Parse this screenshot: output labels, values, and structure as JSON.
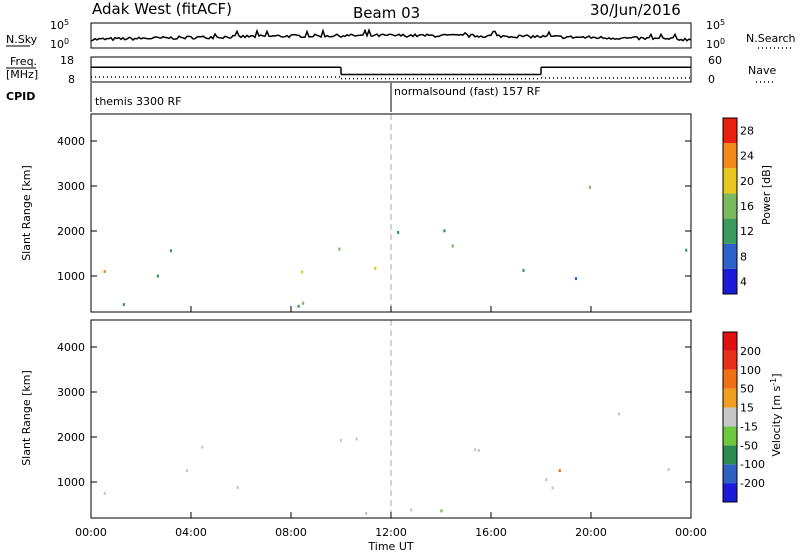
{
  "header": {
    "radar": "Adak West (fitACF)",
    "beam": "Beam 03",
    "date": "30/Jun/2016"
  },
  "chart_data": [
    {
      "type": "line",
      "panel": "noise",
      "left_label": "N.Sky",
      "right_label": "N.Search",
      "left_ticks": [
        "10^5",
        "10^0"
      ],
      "right_ticks": [
        "10^5",
        "10^0"
      ]
    },
    {
      "type": "line",
      "panel": "frequency",
      "left_label_top": "Freq.",
      "left_label_bottom": "[MHz]",
      "right_label": "Nave",
      "left_ticks": [
        "18",
        "8"
      ],
      "right_ticks": [
        "60",
        "0"
      ],
      "freq_steps": [
        {
          "x0": 0,
          "x1": 10,
          "y": 14.5
        },
        {
          "x0": 10,
          "x1": 18,
          "y": 10.5
        },
        {
          "x0": 18,
          "x1": 24,
          "y": 14.5
        }
      ],
      "nave_steps": [
        {
          "x0": 0,
          "x1": 10,
          "y": 12
        },
        {
          "x0": 10,
          "x1": 18,
          "y": 8
        },
        {
          "x0": 18,
          "x1": 24,
          "y": 10
        }
      ]
    },
    {
      "type": "table",
      "panel": "cpid",
      "label": "CPID",
      "segments": [
        {
          "start": 0,
          "text": "themis 3300 RF"
        },
        {
          "start": 12,
          "text": "normalsound (fast) 157 RF"
        }
      ]
    },
    {
      "type": "heatmap",
      "panel": "power",
      "ylabel": "Slant Range [km]",
      "yticks": [
        1000,
        2000,
        3000,
        4000
      ],
      "ylim": [
        200,
        4600
      ],
      "colorbar_label": "Power [dB]",
      "colorbar_ticks": [
        "4",
        "8",
        "12",
        "16",
        "20",
        "24",
        "28"
      ],
      "colors": [
        "#1a1ad8",
        "#2e62c8",
        "#3a9a60",
        "#7cba60",
        "#e8c820",
        "#f08a18",
        "#e82010"
      ]
    },
    {
      "type": "heatmap",
      "panel": "velocity",
      "ylabel": "Slant Range [km]",
      "yticks": [
        1000,
        2000,
        3000,
        4000
      ],
      "ylim": [
        200,
        4600
      ],
      "colorbar_label": "Velocity [m s^-1]",
      "colorbar_ticks": [
        "200",
        "100",
        "50",
        "15",
        "-15",
        "-50",
        "-100",
        "-200"
      ],
      "colors": [
        "#1a1ad8",
        "#3060c0",
        "#2a8a50",
        "#70c840",
        "#c8c8c8",
        "#f0a020",
        "#f07018",
        "#e83018",
        "#e01010"
      ]
    }
  ],
  "xaxis": {
    "label": "Time UT",
    "ticks": [
      "00:00",
      "04:00",
      "08:00",
      "12:00",
      "16:00",
      "20:00",
      "00:00"
    ]
  }
}
